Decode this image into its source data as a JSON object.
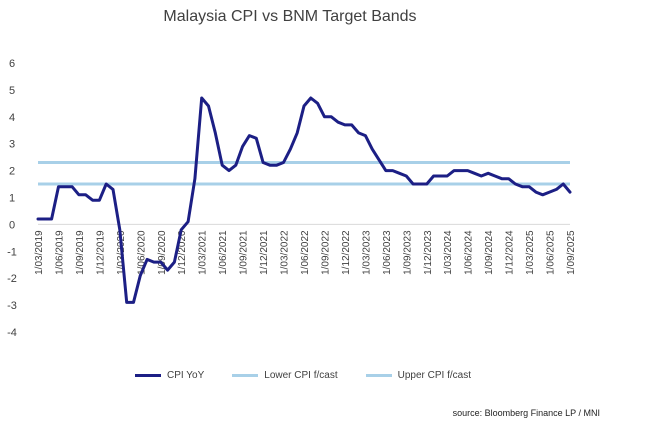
{
  "chart_data": {
    "type": "line",
    "title": "Malaysia CPI vs BNM Target Bands",
    "xlabel": "",
    "ylabel": "",
    "ylim": [
      -4,
      6
    ],
    "yticks": [
      -4,
      -3,
      -2,
      -1,
      0,
      1,
      2,
      3,
      4,
      5,
      6
    ],
    "grid": false,
    "legend_position": "bottom",
    "x_tick_labels": [
      "1/03/2019",
      "1/06/2019",
      "1/09/2019",
      "1/12/2019",
      "1/03/2020",
      "1/06/2020",
      "1/09/2020",
      "1/12/2020",
      "1/03/2021",
      "1/06/2021",
      "1/09/2021",
      "1/12/2021",
      "1/03/2022",
      "1/06/2022",
      "1/09/2022",
      "1/12/2022",
      "1/03/2023",
      "1/06/2023",
      "1/09/2023",
      "1/12/2023",
      "1/03/2024",
      "1/06/2024",
      "1/09/2024",
      "1/12/2024",
      "1/03/2025",
      "1/06/2025",
      "1/09/2025"
    ],
    "series": [
      {
        "name": "CPI YoY",
        "color": "#1c1f85",
        "values": [
          0.2,
          0.2,
          0.2,
          1.4,
          1.4,
          1.4,
          1.1,
          1.1,
          0.9,
          0.9,
          1.5,
          1.3,
          -0.2,
          -2.9,
          -2.9,
          -1.9,
          -1.3,
          -1.4,
          -1.4,
          -1.7,
          -1.4,
          -0.2,
          0.1,
          1.7,
          4.7,
          4.4,
          3.4,
          2.2,
          2.0,
          2.2,
          2.9,
          3.3,
          3.2,
          2.3,
          2.2,
          2.2,
          2.3,
          2.8,
          3.4,
          4.4,
          4.7,
          4.5,
          4.0,
          4.0,
          3.8,
          3.7,
          3.7,
          3.4,
          3.3,
          2.8,
          2.4,
          2.0,
          2.0,
          1.9,
          1.8,
          1.5,
          1.5,
          1.5,
          1.8,
          1.8,
          1.8,
          2.0,
          2.0,
          2.0,
          1.9,
          1.8,
          1.9,
          1.8,
          1.7,
          1.7,
          1.5,
          1.4,
          1.4,
          1.2,
          1.1,
          1.2,
          1.3,
          1.5,
          1.2
        ]
      },
      {
        "name": "Lower CPI f/cast",
        "color": "#a8d0e8",
        "values": [
          1.5
        ]
      },
      {
        "name": "Upper CPI f/cast",
        "color": "#a8d0e8",
        "values": [
          2.3
        ]
      }
    ]
  },
  "source": "source: Bloomberg Finance LP / MNI"
}
